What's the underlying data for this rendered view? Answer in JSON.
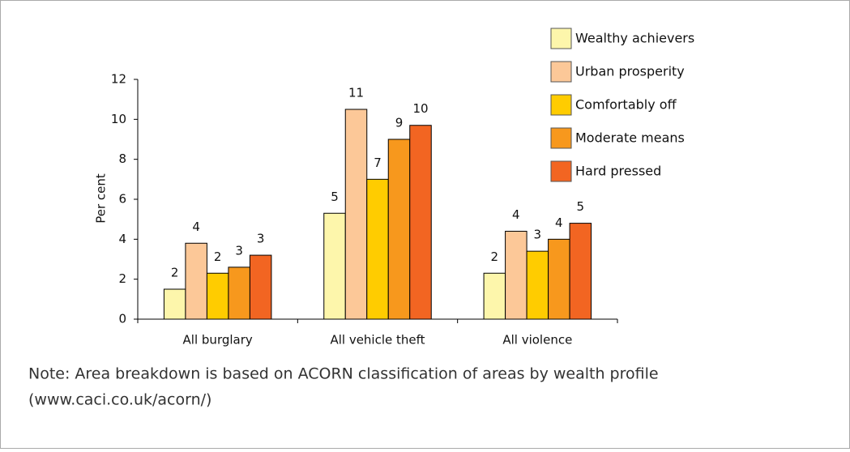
{
  "chart_data": {
    "type": "bar",
    "ylabel": "Per cent",
    "categories": [
      "All burglary",
      "All vehicle theft",
      "All violence"
    ],
    "series": [
      {
        "name": "Wealthy achievers",
        "color": "#fdf6ab",
        "values": [
          1.5,
          5.3,
          2.3
        ],
        "value_labels": [
          "2",
          "5",
          "2"
        ]
      },
      {
        "name": "Urban prosperity",
        "color": "#fcc898",
        "values": [
          3.8,
          10.5,
          4.4
        ],
        "value_labels": [
          "4",
          "11",
          "4"
        ]
      },
      {
        "name": "Comfortably off",
        "color": "#ffcc00",
        "values": [
          2.3,
          7.0,
          3.4
        ],
        "value_labels": [
          "2",
          "7",
          "3"
        ]
      },
      {
        "name": "Moderate means",
        "color": "#f7981d",
        "values": [
          2.6,
          9.0,
          4.0
        ],
        "value_labels": [
          "3",
          "9",
          "4"
        ]
      },
      {
        "name": "Hard pressed",
        "color": "#f26522",
        "values": [
          3.2,
          9.7,
          4.8
        ],
        "value_labels": [
          "3",
          "10",
          "5"
        ]
      }
    ],
    "ylim": [
      0,
      12
    ],
    "yticks": [
      0,
      2,
      4,
      6,
      8,
      10,
      12
    ],
    "legend": "upper right",
    "note": [
      "Note: Area breakdown is based on ACORN classification of areas by wealth profile",
      "(www.caci.co.uk/acorn/)"
    ]
  }
}
